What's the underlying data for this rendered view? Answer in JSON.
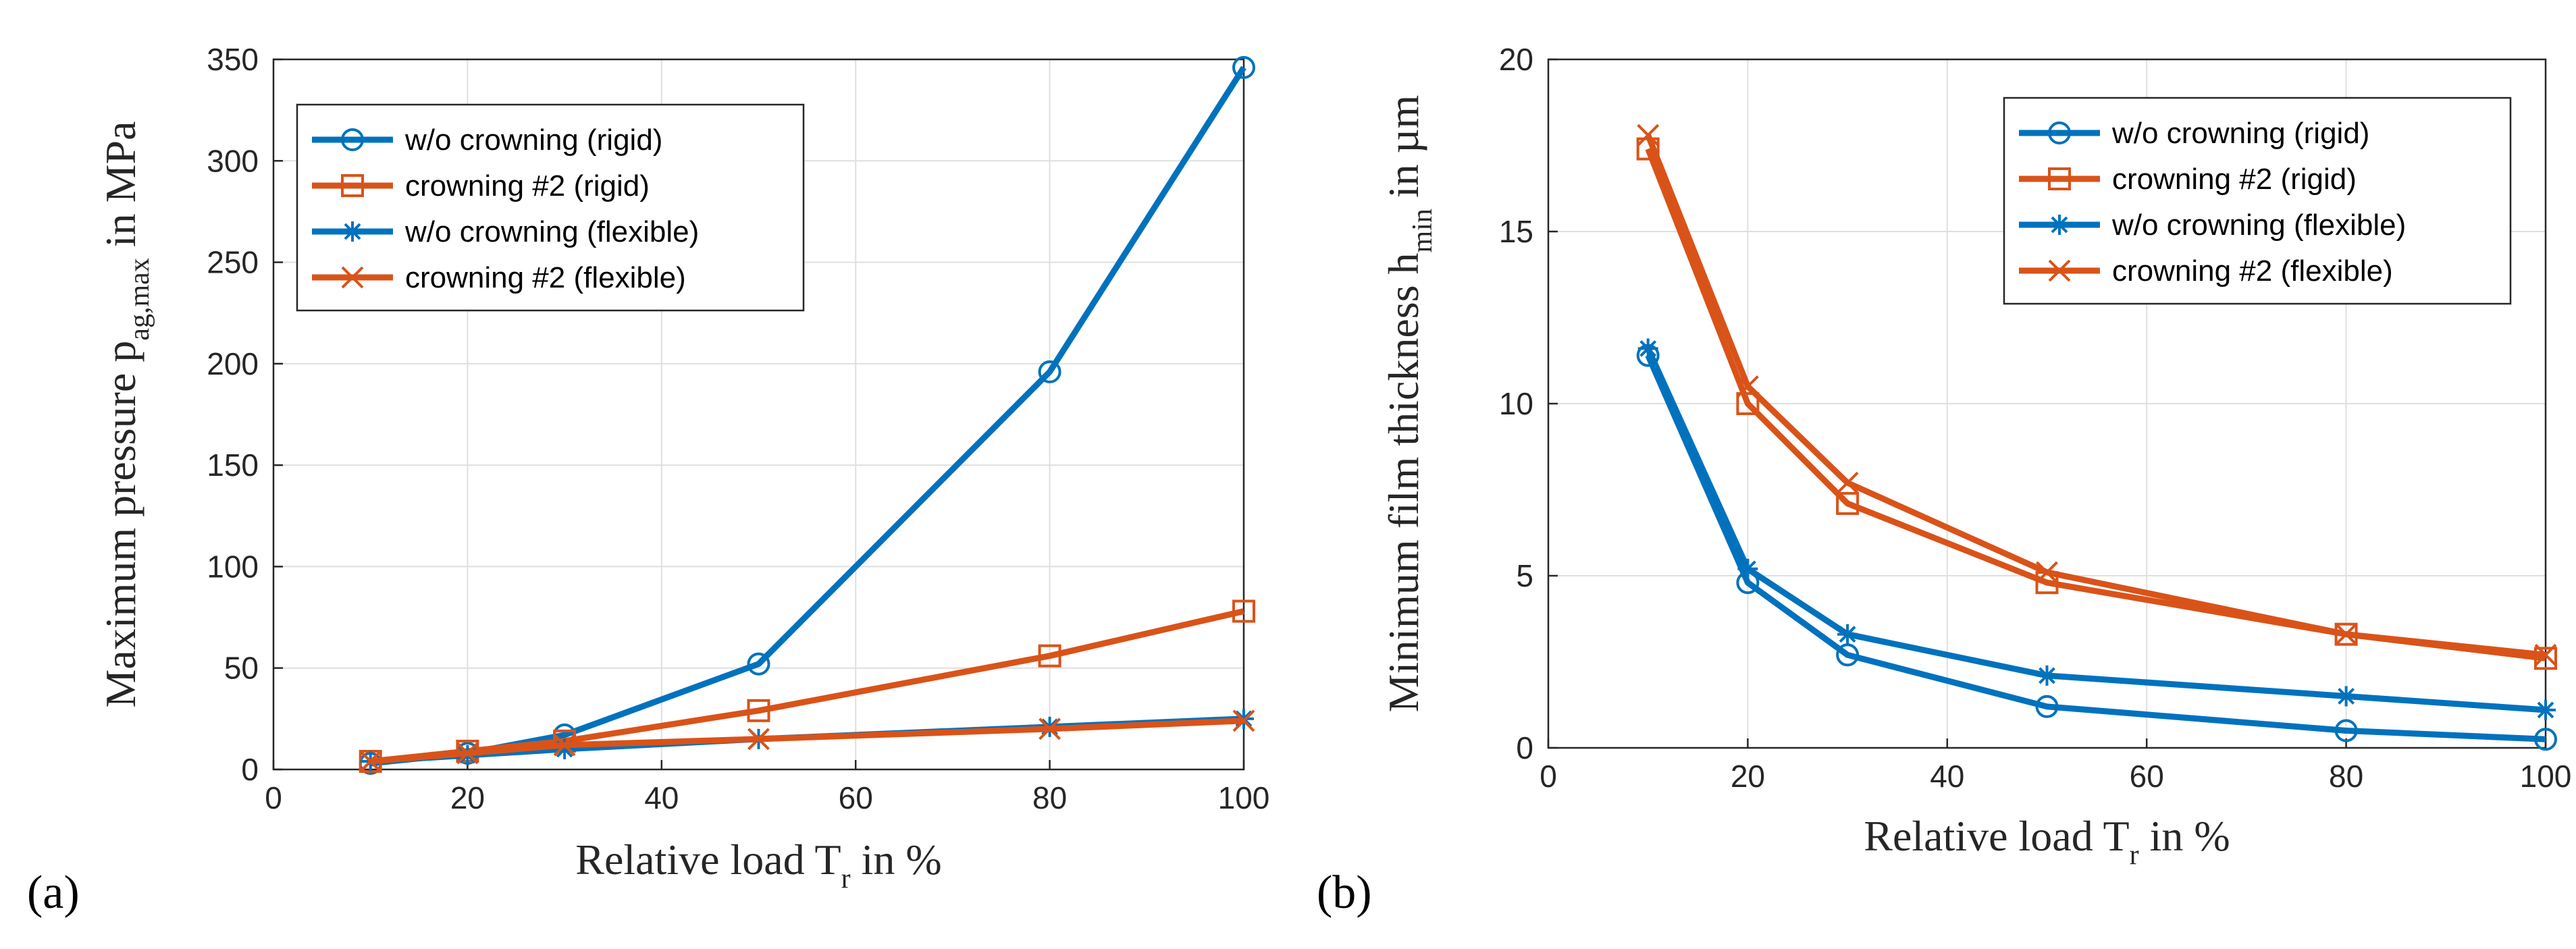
{
  "colors": {
    "blue": "#0072BD",
    "orange": "#D95319"
  },
  "chart_data": [
    {
      "type": "line",
      "panel_label": "(a)",
      "x": [
        10,
        20,
        30,
        50,
        80,
        100
      ],
      "xlim": [
        0,
        100
      ],
      "ylim": [
        0,
        350
      ],
      "xticks": [
        0,
        20,
        40,
        60,
        80,
        100
      ],
      "yticks": [
        0,
        50,
        100,
        150,
        200,
        250,
        300,
        350
      ],
      "xlabel": {
        "text": "Relative load T",
        "sub": "r",
        "suffix": " in %"
      },
      "ylabel": {
        "text": "Maximum pressure p",
        "sub": "ag,max",
        "suffix": " in MPa"
      },
      "legend_position": "top-left",
      "series": [
        {
          "name": "w/o crowning (rigid)",
          "color": "blue",
          "marker": "circle",
          "values": [
            3,
            8,
            17,
            52,
            196,
            346
          ]
        },
        {
          "name": "crowning #2 (rigid)",
          "color": "orange",
          "marker": "square",
          "values": [
            4,
            9,
            14,
            29,
            56,
            78
          ]
        },
        {
          "name": "w/o crowning (flexible)",
          "color": "blue",
          "marker": "star",
          "values": [
            4,
            7,
            10,
            15,
            21,
            25
          ]
        },
        {
          "name": "crowning #2 (flexible)",
          "color": "orange",
          "marker": "x",
          "values": [
            4,
            8,
            12,
            15,
            20,
            24
          ]
        }
      ]
    },
    {
      "type": "line",
      "panel_label": "(b)",
      "x": [
        10,
        20,
        30,
        50,
        80,
        100
      ],
      "xlim": [
        0,
        100
      ],
      "ylim": [
        0,
        20
      ],
      "xticks": [
        0,
        20,
        40,
        60,
        80,
        100
      ],
      "yticks": [
        0,
        5,
        10,
        15,
        20
      ],
      "xlabel": {
        "text": "Relative load T",
        "sub": "r",
        "suffix": " in %"
      },
      "ylabel": {
        "text": "Minimum film thickness h",
        "sub": "min",
        "suffix": " in µm"
      },
      "legend_position": "top-right",
      "series": [
        {
          "name": "w/o crowning (rigid)",
          "color": "blue",
          "marker": "circle",
          "values": [
            11.4,
            4.8,
            2.7,
            1.2,
            0.5,
            0.25
          ]
        },
        {
          "name": "crowning #2 (rigid)",
          "color": "orange",
          "marker": "square",
          "values": [
            17.4,
            10.0,
            7.1,
            4.8,
            3.3,
            2.6
          ]
        },
        {
          "name": "w/o crowning (flexible)",
          "color": "blue",
          "marker": "star",
          "values": [
            11.6,
            5.2,
            3.3,
            2.1,
            1.5,
            1.1
          ]
        },
        {
          "name": "crowning #2 (flexible)",
          "color": "orange",
          "marker": "x",
          "values": [
            17.8,
            10.5,
            7.7,
            5.1,
            3.3,
            2.7
          ]
        }
      ]
    }
  ]
}
